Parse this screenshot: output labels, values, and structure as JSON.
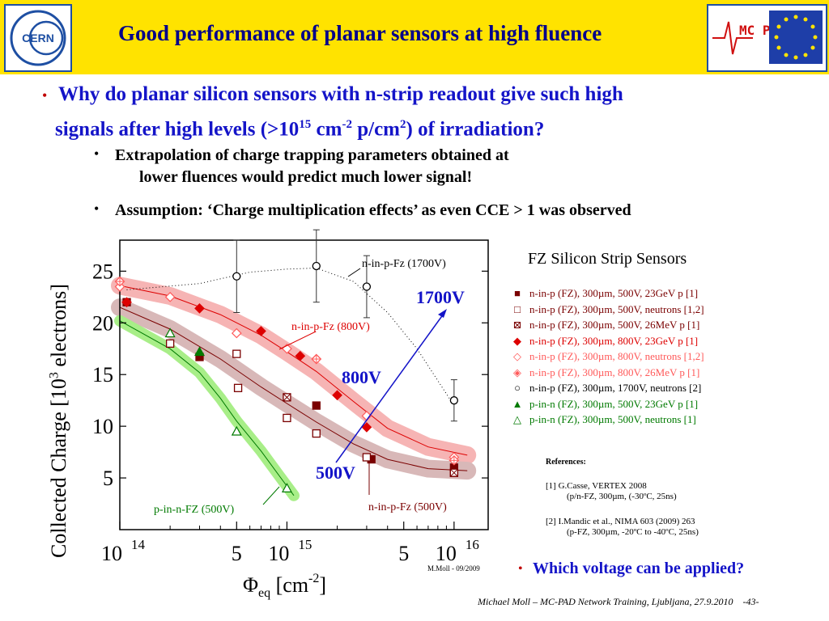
{
  "header": {
    "title": "Good performance of planar sensors at high fluence",
    "logo_left": "CERN",
    "logo_right": "MC PAD"
  },
  "bullets": {
    "main_line1": "Why do planar silicon sensors with n-strip readout give such high",
    "main_line2": "signals after high levels (>10",
    "main_sup1": "15",
    "main_mid1": " cm",
    "main_sup2": "-2",
    "main_mid2": " p/cm",
    "main_sup3": "2",
    "main_end": ") of irradiation?",
    "sub1_line1": "Extrapolation of charge trapping parameters obtained at",
    "sub1_line2": "lower fluences would predict much lower signal!",
    "sub2": "Assumption: ‘Charge multiplication effects’ as even CCE > 1 was observed"
  },
  "chart_data": {
    "type": "scatter",
    "ylabel_main": "Collected Charge [10",
    "ylabel_sup": "3",
    "ylabel_end": " electrons]",
    "xlabel_main": "Φ",
    "xlabel_sub": "eq",
    "xlabel_unit": " [cm",
    "xlabel_sup": "-2",
    "xlabel_end": "]",
    "x_scale": "log",
    "xlim": [
      100000000000000.0,
      1.6e+16
    ],
    "ylim": [
      0,
      28
    ],
    "yticks": [
      "5",
      "10",
      "15",
      "20",
      "25"
    ],
    "xticks": [
      {
        "base": "10",
        "sup": "14"
      },
      {
        "base": "5",
        "sup": ""
      },
      {
        "base": "10",
        "sup": "15"
      },
      {
        "base": "5",
        "sup": ""
      },
      {
        "base": "10",
        "sup": "16"
      }
    ],
    "legend_title": "FZ Silicon Strip Sensors",
    "legend_position": "right",
    "series": [
      {
        "name": "n-in-p (FZ), 300µm, 500V, 23GeV p [1]",
        "marker": "square-filled",
        "color": "#7a0000",
        "x": [
          110000000000000.0,
          300000000000000.0,
          1500000000000000.0,
          3200000000000000.0,
          1e+16
        ],
        "y": [
          22,
          16.7,
          12,
          6.8,
          6
        ]
      },
      {
        "name": "n-in-p (FZ), 300µm, 500V, neutrons  [1,2]",
        "marker": "square-open",
        "color": "#7a0000",
        "x": [
          200000000000000.0,
          500000000000000.0,
          510000000000000.0,
          1000000000000000.0,
          1500000000000000.0,
          3000000000000000.0,
          1e+16
        ],
        "y": [
          18,
          17,
          13.7,
          10.8,
          9.3,
          7,
          5.5
        ]
      },
      {
        "name": "n-in-p (FZ), 300µm, 500V, 26MeV p [1]",
        "marker": "square-cross",
        "color": "#7a0000",
        "x": [
          1000000000000000.0,
          1e+16
        ],
        "y": [
          12.8,
          5.5
        ]
      },
      {
        "name": "n-in-p (FZ), 300µm, 800V, 23GeV p [1]",
        "marker": "diamond-filled",
        "color": "#dd0000",
        "x": [
          110000000000000.0,
          300000000000000.0,
          700000000000000.0,
          1200000000000000.0,
          2000000000000000.0,
          3000000000000000.0
        ],
        "y": [
          22,
          21.4,
          19.2,
          16.8,
          13,
          9.9
        ]
      },
      {
        "name": "n-in-p (FZ), 300µm, 800V, neutrons  [1,2]",
        "marker": "diamond-open",
        "color": "#ff5a5a",
        "x": [
          100000000000000.0,
          200000000000000.0,
          500000000000000.0,
          1000000000000000.0,
          1500000000000000.0,
          3000000000000000.0,
          1e+16
        ],
        "y": [
          23.5,
          22.5,
          19,
          17.5,
          16.5,
          11,
          7
        ]
      },
      {
        "name": "n-in-p (FZ), 300µm, 800V, 26MeV p [1]",
        "marker": "diamond-cross",
        "color": "#ff5a5a",
        "x": [
          100000000000000.0,
          1500000000000000.0,
          1e+16
        ],
        "y": [
          24,
          16.5,
          6.7
        ]
      },
      {
        "name": "n-in-p (FZ), 300µm, 1700V, neutrons [2]",
        "marker": "circle-open",
        "color": "#000000",
        "x": [
          500000000000000.0,
          1500000000000000.0,
          3000000000000000.0,
          1e+16
        ],
        "y": [
          24.5,
          25.5,
          23.5,
          12.5
        ],
        "err": [
          3.5,
          3.5,
          3,
          2
        ]
      },
      {
        "name": "p-in-n (FZ), 300µm, 500V, 23GeV p [1]",
        "marker": "triangle-filled",
        "color": "#007a00",
        "x": [
          300000000000000.0
        ],
        "y": [
          17.2
        ]
      },
      {
        "name": "p-in-n (FZ), 300µm, 500V, neutrons [1]",
        "marker": "triangle-open",
        "color": "#007a00",
        "x": [
          200000000000000.0,
          500000000000000.0,
          1000000000000000.0
        ],
        "y": [
          19,
          9.5,
          4
        ]
      }
    ],
    "fits": [
      {
        "label": "n-in-p-Fz (1700V)",
        "color": "#000000"
      },
      {
        "label": "n-in-p-Fz (800V)",
        "color": "#dd0000"
      },
      {
        "label": "n-in-p-Fz (500V)",
        "color": "#7a0000"
      },
      {
        "label": "p-in-n-FZ (500V)",
        "color": "#007a00"
      }
    ],
    "arrow_labels": [
      "500V",
      "800V",
      "1700V"
    ],
    "credit": "M.Moll - 09/2009"
  },
  "references": {
    "title": "References:",
    "r1_line1": "[1] G.Casse, VERTEX 2008",
    "r1_line2": "(p/n-FZ, 300µm, (-30ºC, 25ns)",
    "r2_line1": "[2] I.Mandic et al., NIMA 603 (2009) 263",
    "r2_line2": "(p-FZ, 300µm, -20ºC to -40ºC, 25ns)"
  },
  "question": "Which voltage can be applied?",
  "footer": {
    "text": "Michael Moll – MC-PAD Network Training, Ljubljana, 27.9.2010",
    "page": "-43-"
  }
}
